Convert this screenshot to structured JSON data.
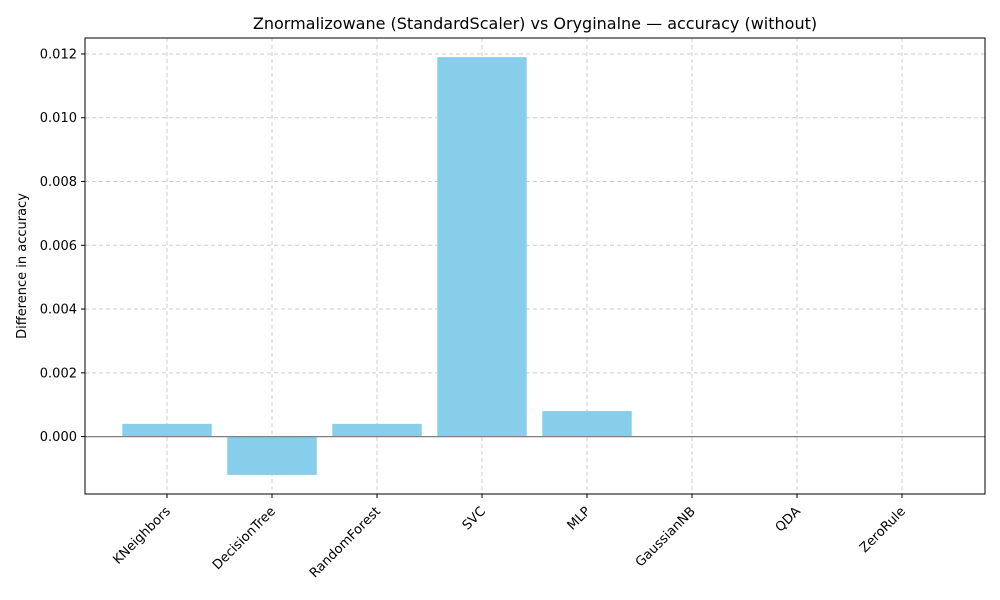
{
  "chart_data": {
    "type": "bar",
    "title": "Znormalizowane (StandardScaler) vs Oryginalne — accuracy (without)",
    "xlabel": "",
    "ylabel": "Difference in accuracy",
    "categories": [
      "KNeighbors",
      "DecisionTree",
      "RandomForest",
      "SVC",
      "MLP",
      "GaussianNB",
      "QDA",
      "ZeroRule"
    ],
    "values": [
      0.0004,
      -0.0012,
      0.0004,
      0.0119,
      0.0008,
      0.0,
      0.0,
      0.0
    ],
    "ylim": [
      -0.0018,
      0.0125
    ],
    "yticks": [
      0.0,
      0.002,
      0.004,
      0.006,
      0.008,
      0.01,
      0.012
    ],
    "ytick_labels": [
      "0.000",
      "0.002",
      "0.004",
      "0.006",
      "0.008",
      "0.010",
      "0.012"
    ],
    "grid": true,
    "zero_line": true,
    "colors": {
      "bar": "#87ceeb",
      "zero_line": "#808080",
      "grid": "#cccccc"
    }
  }
}
